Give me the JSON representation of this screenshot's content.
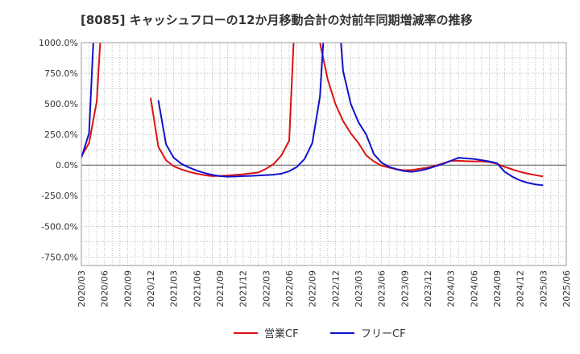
{
  "chart_data": {
    "type": "line",
    "title": "[8085]  キャッシュフローの12か月移動合計の対前年同期増減率の推移",
    "xlabel": "",
    "ylabel": "",
    "ylim": [
      -820,
      1000
    ],
    "y_ticks": [
      {
        "value": 1000,
        "label": "1000.0%"
      },
      {
        "value": 750,
        "label": "750.0%"
      },
      {
        "value": 500,
        "label": "500.0%"
      },
      {
        "value": 250,
        "label": "250.0%"
      },
      {
        "value": 0,
        "label": "0.0%"
      },
      {
        "value": -250,
        "label": "-250.0%"
      },
      {
        "value": -500,
        "label": "-500.0%"
      },
      {
        "value": -750,
        "label": "-750.0%"
      }
    ],
    "x_ticks": [
      "2020/03",
      "2020/06",
      "2020/09",
      "2020/12",
      "2021/03",
      "2021/06",
      "2021/09",
      "2021/12",
      "2022/03",
      "2022/06",
      "2022/09",
      "2022/12",
      "2023/03",
      "2023/06",
      "2023/09",
      "2023/12",
      "2024/03",
      "2024/06",
      "2024/09",
      "2024/12",
      "2025/03",
      "2025/06"
    ],
    "grid": true,
    "legend_position": "bottom",
    "series": [
      {
        "name": "営業CF",
        "color": "#dd1111",
        "points": [
          [
            0,
            70
          ],
          [
            1,
            180
          ],
          [
            2,
            520
          ],
          [
            3,
            1600
          ],
          null,
          [
            9,
            550
          ],
          [
            10,
            150
          ],
          [
            11,
            40
          ],
          [
            12,
            -10
          ],
          [
            13,
            -35
          ],
          [
            14,
            -55
          ],
          [
            15,
            -70
          ],
          [
            16,
            -82
          ],
          [
            17,
            -90
          ],
          [
            18,
            -88
          ],
          [
            19,
            -85
          ],
          [
            20,
            -80
          ],
          [
            21,
            -75
          ],
          [
            22,
            -68
          ],
          [
            23,
            -60
          ],
          [
            24,
            -30
          ],
          [
            25,
            10
          ],
          [
            26,
            80
          ],
          [
            27,
            200
          ],
          [
            28,
            1600
          ],
          null,
          [
            31,
            1000
          ],
          [
            32,
            700
          ],
          [
            33,
            500
          ],
          [
            34,
            360
          ],
          [
            35,
            260
          ],
          [
            36,
            180
          ],
          [
            37,
            80
          ],
          [
            38,
            30
          ],
          [
            39,
            -5
          ],
          [
            40,
            -20
          ],
          [
            41,
            -35
          ],
          [
            42,
            -42
          ],
          [
            43,
            -40
          ],
          [
            44,
            -30
          ],
          [
            45,
            -20
          ],
          [
            46,
            -5
          ],
          [
            47,
            15
          ],
          [
            48,
            35
          ],
          [
            49,
            35
          ],
          [
            50,
            32
          ],
          [
            51,
            30
          ],
          [
            52,
            30
          ],
          [
            53,
            25
          ],
          [
            54,
            10
          ],
          [
            55,
            -15
          ],
          [
            56,
            -35
          ],
          [
            57,
            -55
          ],
          [
            58,
            -70
          ],
          [
            59,
            -82
          ],
          [
            60,
            -92
          ]
        ]
      },
      {
        "name": "フリーCF",
        "color": "#1111cc",
        "points": [
          [
            0,
            60
          ],
          [
            1,
            260
          ],
          [
            2,
            1600
          ],
          null,
          [
            10,
            530
          ],
          [
            11,
            170
          ],
          [
            12,
            60
          ],
          [
            13,
            10
          ],
          [
            14,
            -20
          ],
          [
            15,
            -45
          ],
          [
            16,
            -65
          ],
          [
            17,
            -80
          ],
          [
            18,
            -90
          ],
          [
            19,
            -95
          ],
          [
            20,
            -93
          ],
          [
            21,
            -90
          ],
          [
            22,
            -88
          ],
          [
            23,
            -85
          ],
          [
            24,
            -82
          ],
          [
            25,
            -78
          ],
          [
            26,
            -70
          ],
          [
            27,
            -50
          ],
          [
            28,
            -15
          ],
          [
            29,
            50
          ],
          [
            30,
            180
          ],
          [
            31,
            560
          ],
          [
            32,
            1600
          ],
          null,
          [
            33,
            1600
          ],
          [
            34,
            770
          ],
          [
            35,
            500
          ],
          [
            36,
            350
          ],
          [
            37,
            250
          ],
          [
            38,
            90
          ],
          [
            39,
            20
          ],
          [
            40,
            -15
          ],
          [
            41,
            -35
          ],
          [
            42,
            -50
          ],
          [
            43,
            -55
          ],
          [
            44,
            -45
          ],
          [
            45,
            -30
          ],
          [
            46,
            -10
          ],
          [
            47,
            10
          ],
          [
            48,
            35
          ],
          [
            49,
            60
          ],
          [
            50,
            55
          ],
          [
            51,
            50
          ],
          [
            52,
            40
          ],
          [
            53,
            30
          ],
          [
            54,
            15
          ],
          [
            55,
            -55
          ],
          [
            56,
            -95
          ],
          [
            57,
            -125
          ],
          [
            58,
            -145
          ],
          [
            59,
            -158
          ],
          [
            60,
            -165
          ]
        ]
      }
    ]
  }
}
